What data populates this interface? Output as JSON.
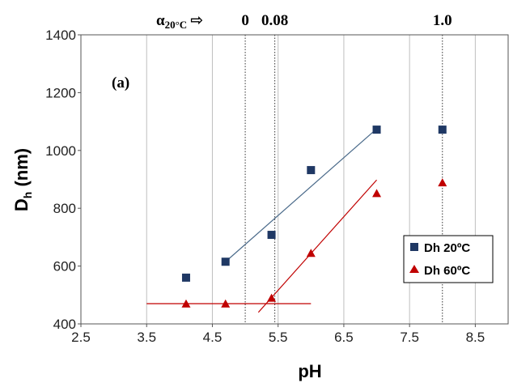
{
  "chart_data": {
    "type": "scatter",
    "panel_label": "(a)",
    "xlabel": "pH",
    "ylabel_main": "D",
    "ylabel_sub": "h",
    "ylabel_unit": " (nm)",
    "xlim": [
      2.5,
      9.0
    ],
    "ylim": [
      400,
      1400
    ],
    "x_ticks": [
      "2.5",
      "3.5",
      "4.5",
      "5.5",
      "6.5",
      "7.5",
      "8.5"
    ],
    "y_ticks": [
      "400",
      "600",
      "800",
      "1000",
      "1200",
      "1400"
    ],
    "x_tick_values": [
      2.5,
      3.5,
      4.5,
      5.5,
      6.5,
      7.5,
      8.5
    ],
    "y_tick_values": [
      400,
      600,
      800,
      1000,
      1200,
      1400
    ],
    "grid": "vertical",
    "legend_position": "bottom-right",
    "alpha_label": {
      "symbol": "α",
      "subscript": "20°C",
      "arrow": "⇨"
    },
    "vertical_markers": [
      {
        "x": 5.0,
        "label": "0"
      },
      {
        "x": 5.45,
        "label": "0.08"
      },
      {
        "x": 8.0,
        "label": "1.0"
      }
    ],
    "series": [
      {
        "name": "Dh 20ºC",
        "marker": "square",
        "color": "#1f3864",
        "x": [
          4.1,
          4.7,
          5.4,
          6.0,
          7.0,
          8.0
        ],
        "y": [
          560,
          615,
          708,
          932,
          1072,
          1072
        ]
      },
      {
        "name": "Dh 60ºC",
        "marker": "triangle",
        "color": "#c00000",
        "x": [
          4.1,
          4.7,
          5.4,
          6.0,
          7.0,
          8.0
        ],
        "y": [
          468,
          468,
          488,
          643,
          850,
          887
        ]
      }
    ],
    "trend_lines": [
      {
        "color": "#4a6a8a",
        "x": [
          4.7,
          7.0
        ],
        "y": [
          615,
          1075
        ]
      },
      {
        "color": "#c00000",
        "x": [
          5.2,
          7.0
        ],
        "y": [
          440,
          898
        ]
      },
      {
        "color": "#c00000",
        "x": [
          3.5,
          6.0
        ],
        "y": [
          470,
          470
        ]
      }
    ]
  }
}
